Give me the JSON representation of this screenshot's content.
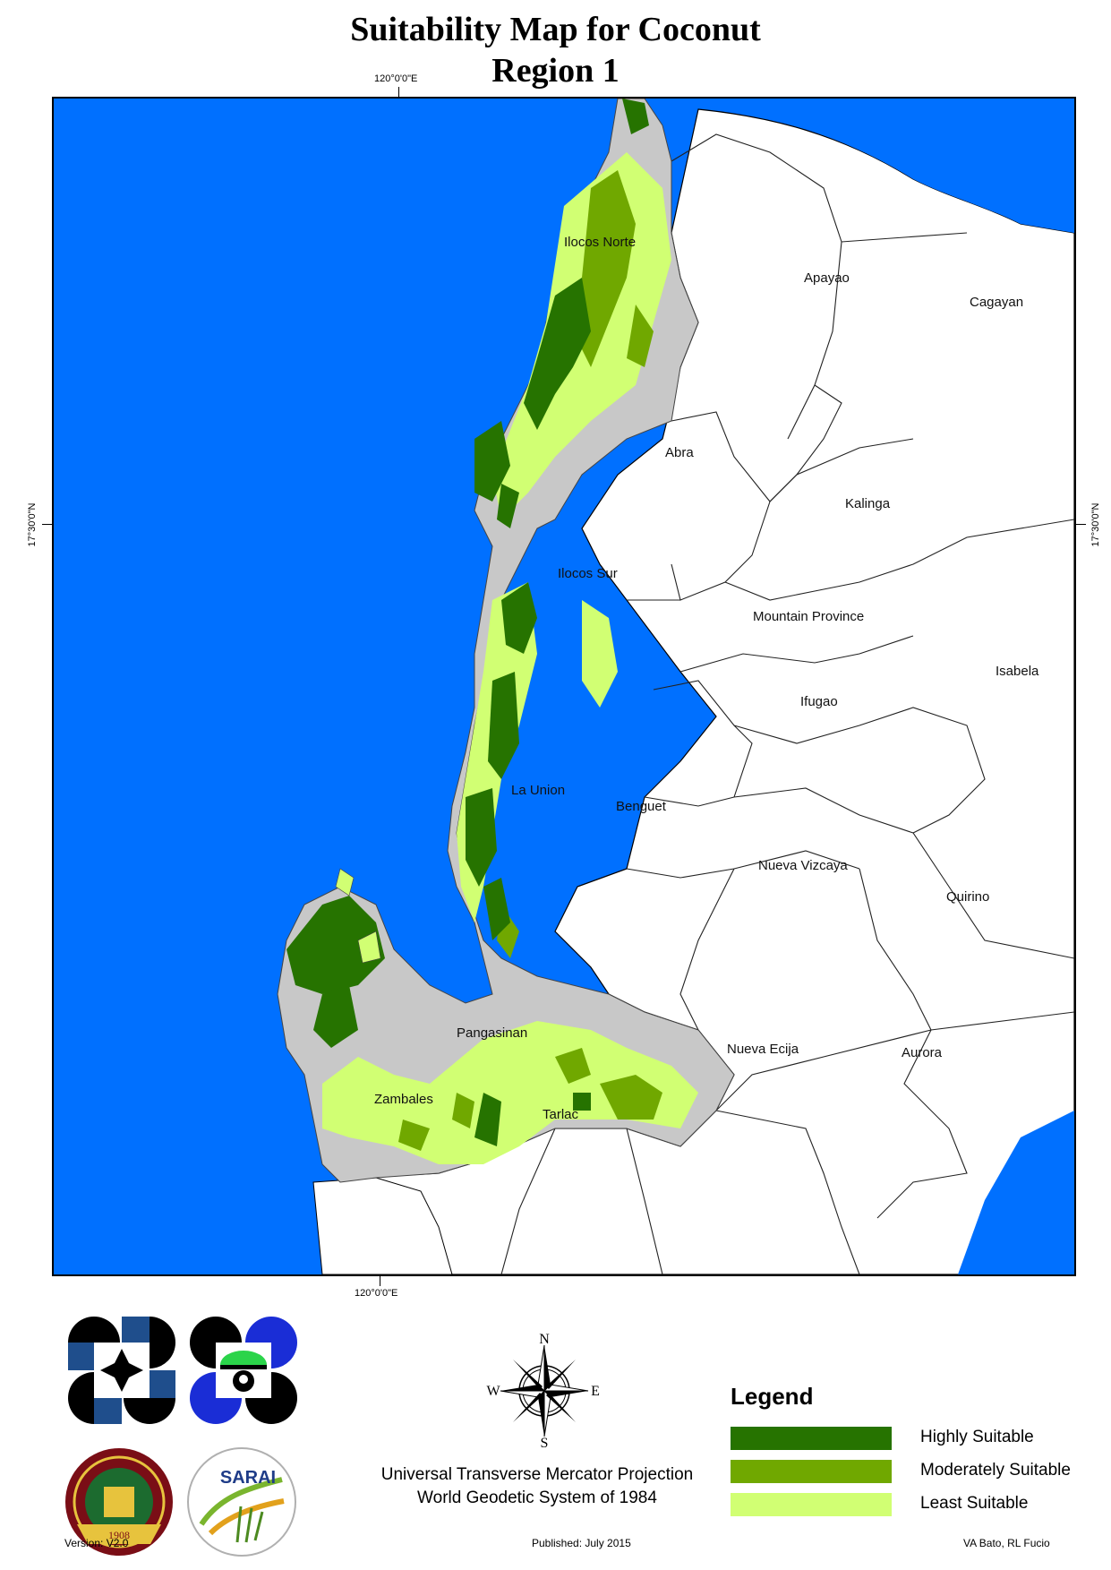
{
  "title": {
    "line1": "Suitability Map for Coconut",
    "line2": "Region 1"
  },
  "coordinates": {
    "top_longitude": "120°0'0\"E",
    "bottom_longitude": "120°0'0\"E",
    "left_latitude": "17°30'0\"N",
    "right_latitude": "17°30'0\"N"
  },
  "provinces": [
    {
      "name": "Ilocos Norte",
      "region1": true
    },
    {
      "name": "Apayao",
      "region1": false
    },
    {
      "name": "Cagayan",
      "region1": false
    },
    {
      "name": "Abra",
      "region1": false
    },
    {
      "name": "Kalinga",
      "region1": false
    },
    {
      "name": "Ilocos Sur",
      "region1": true
    },
    {
      "name": "Mountain Province",
      "region1": false
    },
    {
      "name": "Isabela",
      "region1": false
    },
    {
      "name": "Ifugao",
      "region1": false
    },
    {
      "name": "La Union",
      "region1": true
    },
    {
      "name": "Benguet",
      "region1": false
    },
    {
      "name": "Nueva Vizcaya",
      "region1": false
    },
    {
      "name": "Quirino",
      "region1": false
    },
    {
      "name": "Pangasinan",
      "region1": true
    },
    {
      "name": "Nueva Ecija",
      "region1": false
    },
    {
      "name": "Aurora",
      "region1": false
    },
    {
      "name": "Zambales",
      "region1": false
    },
    {
      "name": "Tarlac",
      "region1": false
    }
  ],
  "colors": {
    "sea": "#0070FF",
    "land_other": "#FFFFFF",
    "region_unsuitable": "#C8C8C8",
    "highly_suitable": "#267300",
    "moderately_suitable": "#70A800",
    "least_suitable": "#D1FF73"
  },
  "compass": {
    "n": "N",
    "s": "S",
    "e": "E",
    "w": "W"
  },
  "projection": {
    "line1": "Universal Transverse Mercator Projection",
    "line2": "World Geodetic System of 1984"
  },
  "legend": {
    "title": "Legend",
    "items": [
      {
        "label": "Highly Suitable",
        "color": "#267300"
      },
      {
        "label": "Moderately Suitable",
        "color": "#70A800"
      },
      {
        "label": "Least Suitable",
        "color": "#D1FF73"
      }
    ]
  },
  "logos": [
    {
      "name": "dost-logo"
    },
    {
      "name": "pcaarrd-logo"
    },
    {
      "name": "uplb-seal",
      "text": "1908"
    },
    {
      "name": "sarai-logo",
      "text": "SARAI"
    }
  ],
  "footer": {
    "version": "Version: V2.0",
    "published": "Published: July 2015",
    "authors": "VA Bato, RL Fucio"
  }
}
